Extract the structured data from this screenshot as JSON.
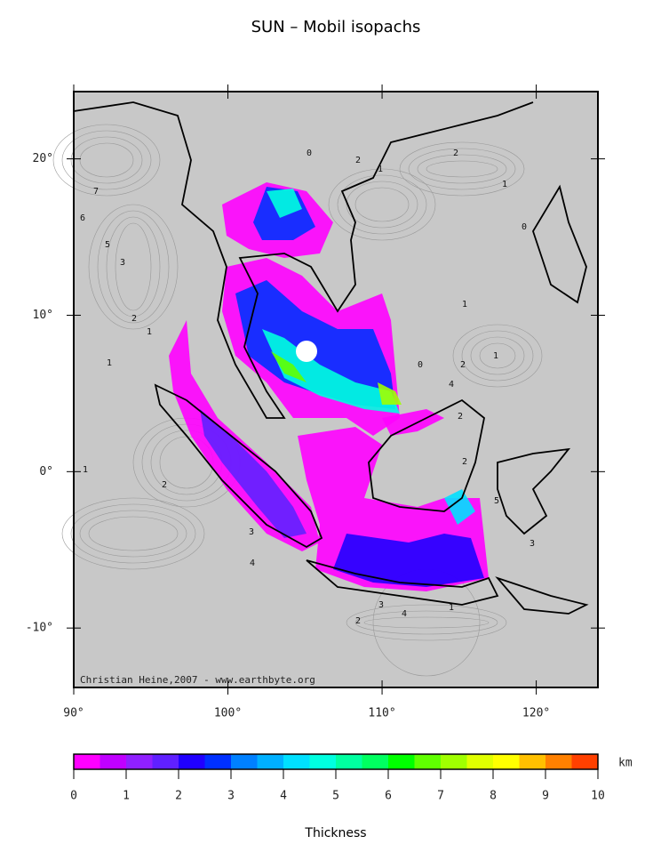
{
  "map": {
    "title": "SUN – Mobil isopachs",
    "lon_range": [
      90,
      124
    ],
    "lat_range": [
      24.3,
      -13.8
    ],
    "lon_ticks": [
      {
        "value": 90,
        "label": "90°"
      },
      {
        "value": 100,
        "label": "100°"
      },
      {
        "value": 110,
        "label": "110°"
      },
      {
        "value": 120,
        "label": "120°"
      }
    ],
    "lat_ticks": [
      {
        "value": 20,
        "label": "20°"
      },
      {
        "value": 10,
        "label": "10°"
      },
      {
        "value": 0,
        "label": "0°"
      },
      {
        "value": -10,
        "label": "-10°"
      }
    ],
    "credit": "Christian Heine,2007 - www.earthbyte.org",
    "contour_labels": [
      "0",
      "1",
      "2",
      "1",
      "2",
      "0",
      "5",
      "7",
      "6",
      "3",
      "1",
      "2",
      "1",
      "0",
      "2",
      "1",
      "4",
      "2",
      "1",
      "5",
      "2",
      "3",
      "4",
      "1",
      "2",
      "3",
      "4",
      "3",
      "1",
      "2"
    ],
    "colorbar": {
      "range": [
        0,
        10
      ],
      "ticks": [
        0,
        1,
        2,
        3,
        4,
        5,
        6,
        7,
        8,
        9,
        10
      ],
      "unit": "km",
      "label": "Thickness",
      "colors": [
        "#ff00ff",
        "#c000ff",
        "#9020ff",
        "#6020ff",
        "#2000ff",
        "#0030ff",
        "#0080ff",
        "#00b0ff",
        "#00e0ff",
        "#00ffe0",
        "#00ffa0",
        "#00ff60",
        "#00ff00",
        "#60ff00",
        "#a0ff00",
        "#e0ff00",
        "#ffff00",
        "#ffc000",
        "#ff8000",
        "#ff4000"
      ]
    }
  }
}
